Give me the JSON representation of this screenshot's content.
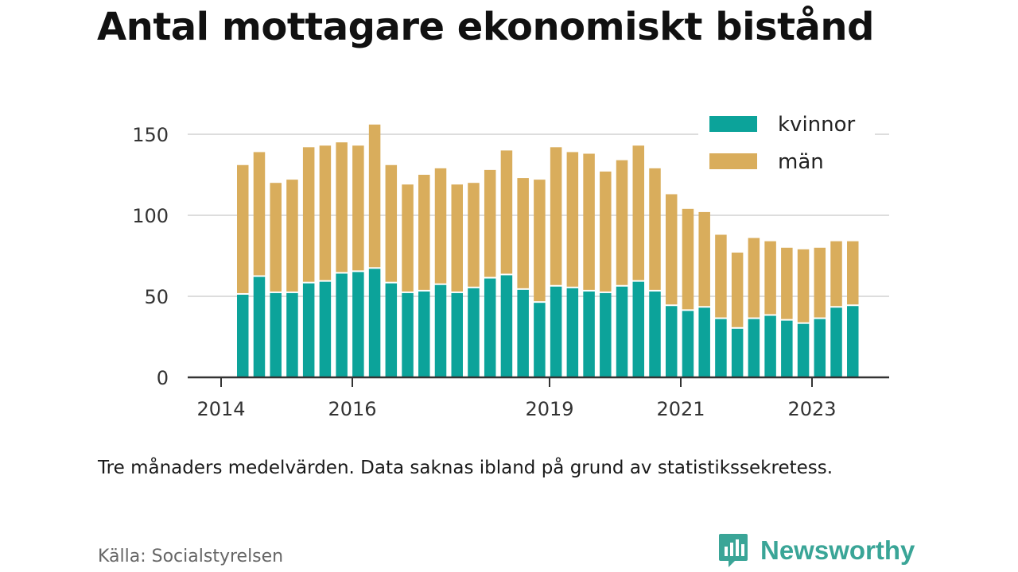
{
  "chart_data": {
    "type": "bar",
    "stacked": true,
    "title": "Antal mottagare ekonomiskt bistånd",
    "xlabel": "",
    "ylabel": "",
    "ylim": [
      0,
      160
    ],
    "yticks": [
      0,
      50,
      100,
      150
    ],
    "xticks": [
      "2014",
      "2016",
      "2019",
      "2021",
      "2023"
    ],
    "grid": true,
    "legend_position": "top-right",
    "series": [
      {
        "name": "kvinnor",
        "color": "#0ca39a",
        "values": [
          51,
          62,
          52,
          52,
          58,
          59,
          64,
          65,
          67,
          58,
          52,
          53,
          57,
          52,
          55,
          61,
          63,
          54,
          46,
          56,
          55,
          53,
          52,
          56,
          59,
          53,
          44,
          41,
          43,
          36,
          30,
          36,
          38,
          35,
          33,
          36,
          43,
          44
        ]
      },
      {
        "name": "män",
        "color": "#d9ad5c",
        "values": [
          80,
          77,
          68,
          70,
          84,
          84,
          81,
          78,
          89,
          73,
          67,
          72,
          72,
          67,
          65,
          67,
          77,
          69,
          76,
          86,
          84,
          85,
          75,
          78,
          84,
          76,
          69,
          63,
          59,
          52,
          47,
          50,
          46,
          45,
          46,
          44,
          41,
          40
        ]
      }
    ]
  },
  "note": "Tre månaders medelvärden. Data saknas ibland på grund av statistikssekretess.",
  "source": "Källa: Socialstyrelsen",
  "brand": "Newsworthy"
}
